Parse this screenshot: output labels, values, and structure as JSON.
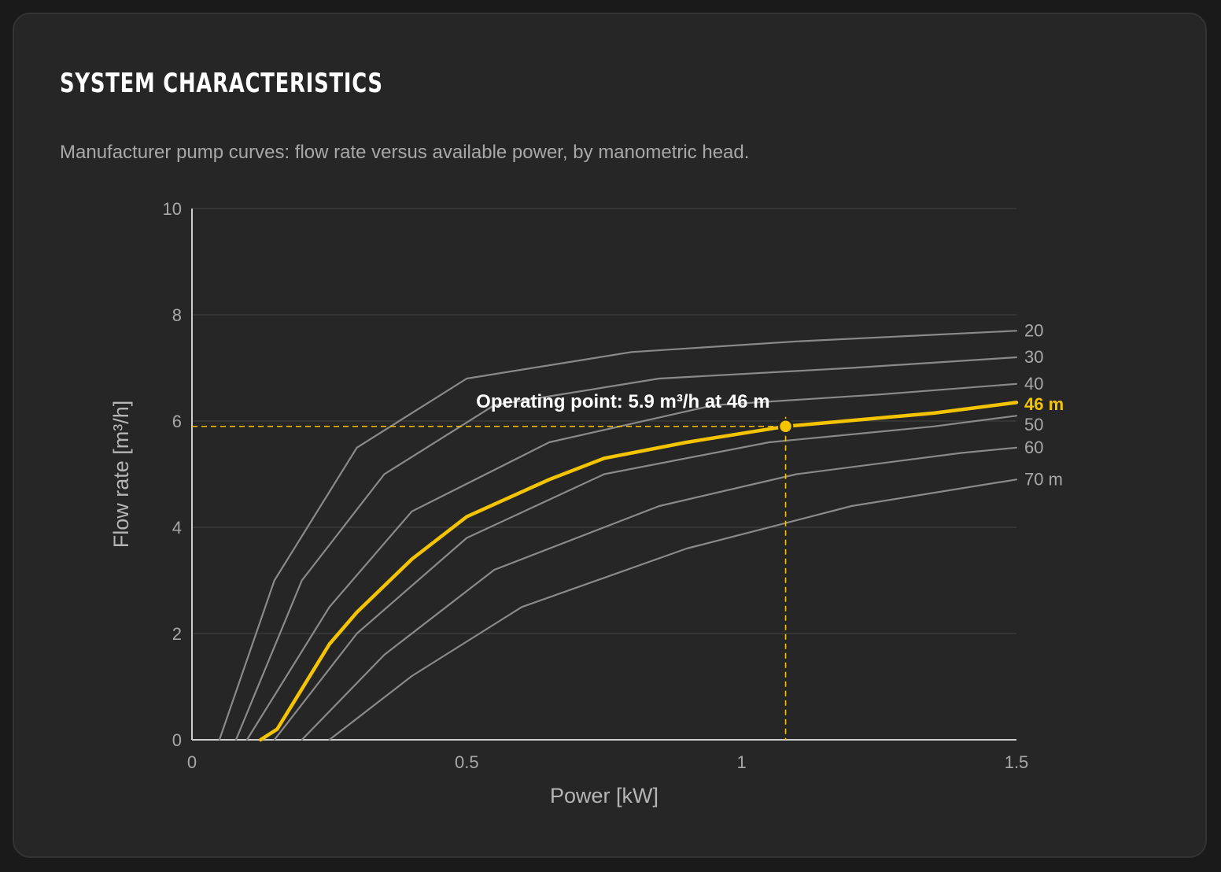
{
  "card": {
    "title": "SYSTEM CHARACTERISTICS",
    "subtitle": "Manufacturer pump curves: flow rate versus available power, by manometric head."
  },
  "colors": {
    "background": "#262626",
    "curve": "#8a8a8a",
    "highlight": "#f5c400",
    "grid": "#3a3a3a",
    "axis": "#cfcfcf"
  },
  "chart_data": {
    "type": "line",
    "xlabel": "Power [kW]",
    "ylabel": "Flow rate [m³/h]",
    "xlim": [
      0,
      1.5
    ],
    "ylim": [
      0,
      10
    ],
    "xticks": [
      {
        "value": 0,
        "label": "0"
      },
      {
        "value": 0.5,
        "label": "0.5"
      },
      {
        "value": 1,
        "label": "1"
      },
      {
        "value": 1.5,
        "label": "1.5"
      }
    ],
    "yticks": [
      {
        "value": 0,
        "label": "0"
      },
      {
        "value": 2,
        "label": "2"
      },
      {
        "value": 4,
        "label": "4"
      },
      {
        "value": 6,
        "label": "6"
      },
      {
        "value": 8,
        "label": "8"
      },
      {
        "value": 10,
        "label": "10"
      }
    ],
    "grid": "horizontal",
    "series": [
      {
        "name": "20",
        "label": "20",
        "highlight": false,
        "points": [
          [
            0.05,
            0
          ],
          [
            0.15,
            3.0
          ],
          [
            0.3,
            5.5
          ],
          [
            0.5,
            6.8
          ],
          [
            0.8,
            7.3
          ],
          [
            1.1,
            7.5
          ],
          [
            1.5,
            7.7
          ]
        ]
      },
      {
        "name": "30",
        "label": "30",
        "highlight": false,
        "points": [
          [
            0.08,
            0
          ],
          [
            0.2,
            3.0
          ],
          [
            0.35,
            5.0
          ],
          [
            0.55,
            6.3
          ],
          [
            0.85,
            6.8
          ],
          [
            1.2,
            7.0
          ],
          [
            1.5,
            7.2
          ]
        ]
      },
      {
        "name": "40",
        "label": "40",
        "highlight": false,
        "points": [
          [
            0.1,
            0
          ],
          [
            0.25,
            2.5
          ],
          [
            0.4,
            4.3
          ],
          [
            0.65,
            5.6
          ],
          [
            0.95,
            6.3
          ],
          [
            1.25,
            6.5
          ],
          [
            1.5,
            6.7
          ]
        ]
      },
      {
        "name": "46 m",
        "label": "46 m",
        "highlight": true,
        "points": [
          [
            0.125,
            0
          ],
          [
            0.155,
            0.2
          ],
          [
            0.25,
            1.8
          ],
          [
            0.3,
            2.4
          ],
          [
            0.4,
            3.4
          ],
          [
            0.5,
            4.2
          ],
          [
            0.65,
            4.9
          ],
          [
            0.75,
            5.3
          ],
          [
            0.9,
            5.6
          ],
          [
            1.08,
            5.9
          ],
          [
            1.35,
            6.15
          ],
          [
            1.5,
            6.35
          ]
        ]
      },
      {
        "name": "50",
        "label": "50",
        "highlight": false,
        "points": [
          [
            0.15,
            0
          ],
          [
            0.3,
            2.0
          ],
          [
            0.5,
            3.8
          ],
          [
            0.75,
            5.0
          ],
          [
            1.05,
            5.6
          ],
          [
            1.35,
            5.9
          ],
          [
            1.5,
            6.1
          ]
        ]
      },
      {
        "name": "60",
        "label": "60",
        "highlight": false,
        "points": [
          [
            0.2,
            0
          ],
          [
            0.35,
            1.6
          ],
          [
            0.55,
            3.2
          ],
          [
            0.85,
            4.4
          ],
          [
            1.1,
            5.0
          ],
          [
            1.4,
            5.4
          ],
          [
            1.5,
            5.5
          ]
        ]
      },
      {
        "name": "70 m",
        "label": "70 m",
        "highlight": false,
        "points": [
          [
            0.25,
            0
          ],
          [
            0.4,
            1.2
          ],
          [
            0.6,
            2.5
          ],
          [
            0.9,
            3.6
          ],
          [
            1.2,
            4.4
          ],
          [
            1.5,
            4.9
          ]
        ]
      }
    ],
    "operating_point": {
      "x": 1.08,
      "y": 5.9,
      "label": "Operating point: 5.9 m³/h at 46 m"
    }
  }
}
